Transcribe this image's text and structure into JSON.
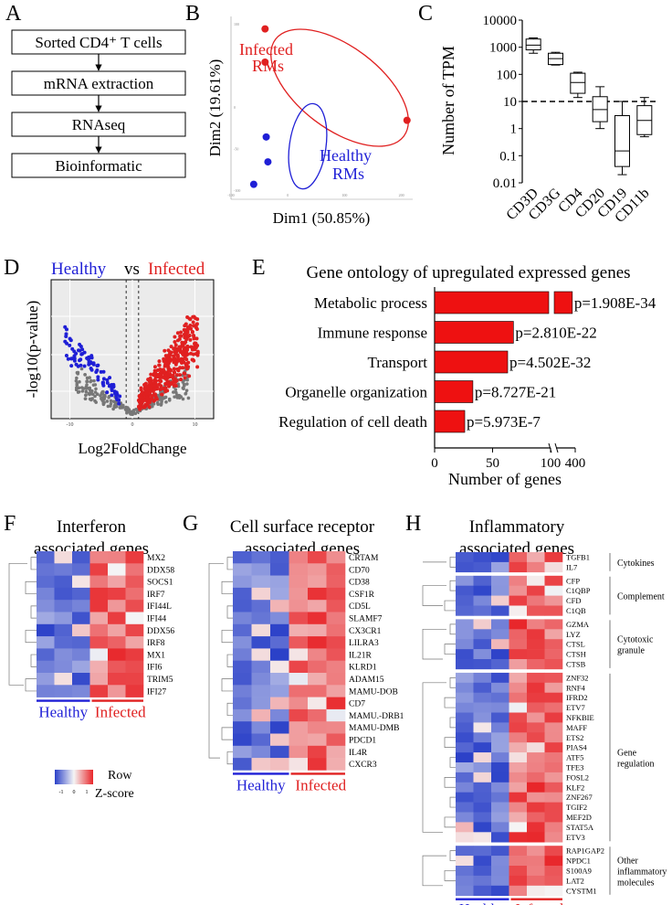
{
  "colors": {
    "healthy": "#1f1fd6",
    "infected": "#e02020",
    "bar": "#ee1111",
    "gray": "#777777",
    "hm_blue": "#2a40c8",
    "hm_red": "#e8262a",
    "hm_white": "#f5f5f5"
  },
  "panelA": {
    "letter": "A",
    "steps": [
      "Sorted CD4⁺ T cells",
      "mRNA extraction",
      "RNAseq",
      "Bioinformatic"
    ]
  },
  "panelB": {
    "letter": "B",
    "chart_data": {
      "type": "scatter",
      "xlabel": "Dim1 (50.85%)",
      "ylabel": "Dim2 (19.61%)",
      "xlim": [
        -100,
        220
      ],
      "ylim": [
        -110,
        110
      ],
      "xticks": [
        "-100",
        "0",
        "100",
        "200"
      ],
      "yticks": [
        "100",
        "0",
        "-50",
        "-100"
      ],
      "series": [
        {
          "name": "Infected RMs",
          "label_lines": [
            "Infected",
            "RMs"
          ],
          "points": [
            [
              -40,
              95
            ],
            [
              -40,
              55
            ],
            [
              210,
              -15
            ]
          ]
        },
        {
          "name": "Healthy RMs",
          "label_lines": [
            "Healthy",
            "RMs"
          ],
          "points": [
            [
              -38,
              -35
            ],
            [
              -35,
              -65
            ],
            [
              -60,
              -92
            ]
          ]
        }
      ]
    }
  },
  "panelC": {
    "letter": "C",
    "chart_data": {
      "type": "box",
      "ylabel": "Number of TPM",
      "yscale": "log",
      "ylim": [
        0.01,
        10000
      ],
      "yticks": [
        "10000",
        "1000",
        "100",
        "10",
        "1",
        "0.1",
        "0.01"
      ],
      "threshold": 10,
      "categories": [
        "CD3D",
        "CD3G",
        "CD4",
        "CD20",
        "CD19",
        "CD11b"
      ],
      "boxes": [
        {
          "min": 600,
          "q1": 800,
          "median": 1200,
          "q3": 2000,
          "max": 2200
        },
        {
          "min": 220,
          "q1": 230,
          "median": 380,
          "q3": 600,
          "max": 650
        },
        {
          "min": 14,
          "q1": 20,
          "median": 50,
          "q3": 110,
          "max": 120
        },
        {
          "min": 1.0,
          "q1": 1.8,
          "median": 5,
          "q3": 15,
          "max": 35
        },
        {
          "min": 0.02,
          "q1": 0.04,
          "median": 0.15,
          "q3": 3,
          "max": 10
        },
        {
          "min": 0.5,
          "q1": 0.6,
          "median": 2,
          "q3": 7,
          "max": 14
        }
      ]
    }
  },
  "panelD": {
    "letter": "D",
    "title_healthy": "Healthy",
    "title_vs": "vs",
    "title_infected": "Infected",
    "chart_data": {
      "type": "scatter",
      "xlabel": "Log2FoldChange",
      "ylabel": "-log10(p-value)",
      "xticks": [
        "-10",
        "0",
        "10"
      ],
      "xlim": [
        -13,
        13
      ],
      "series": [
        "down-regulated (Healthy)",
        "not significant",
        "up-regulated (Infected)"
      ]
    }
  },
  "panelE": {
    "letter": "E",
    "chart_data": {
      "type": "bar",
      "orientation": "horizontal",
      "title": "Gene ontology of upregulated expressed genes",
      "xlabel": "Number of genes",
      "xticks": [
        "0",
        "50",
        "100",
        "400"
      ],
      "categories": [
        "Metabolic process",
        "Immune  response",
        "Transport",
        "Organelle organization",
        "Regulation of cell death"
      ],
      "values": [
        350,
        68,
        63,
        33,
        26
      ],
      "pvalues": [
        "p=1.908E-34",
        "p=2.810E-22",
        "p=4.502E-32",
        "p=8.727E-21",
        "p=5.973E-7"
      ]
    }
  },
  "panelF": {
    "letter": "F",
    "title": [
      "Interferon",
      "associated genes"
    ],
    "genes": [
      "MX2",
      "DDX58",
      "SOCS1",
      "IRF7",
      "IFI44L",
      "IFI44",
      "DDX56",
      "IRF8",
      "MX1",
      "IFI6",
      "TRIM5",
      "IFI27"
    ],
    "healthy_label": "Healthy",
    "infected_label": "Infected"
  },
  "panelG": {
    "letter": "G",
    "title": [
      "Cell surface receptor",
      "associated genes"
    ],
    "genes": [
      "CRTAM",
      "CD70",
      "CD38",
      "CSF1R",
      "CD5L",
      "SLAMF7",
      "CX3CR1",
      "LILRA3",
      "IL21R",
      "KLRD1",
      "ADAM15",
      "MAMU-DOB",
      "CD7",
      "MAMU.-DRB1",
      "MAMU-DMB",
      "PDCD1",
      "IL4R",
      "CXCR3"
    ],
    "healthy_label": "Healthy",
    "infected_label": "Infected"
  },
  "panelH": {
    "letter": "H",
    "title": [
      "Inflammatory",
      "associated genes"
    ],
    "groups": [
      {
        "name": [
          "Cytokines"
        ],
        "genes": [
          "TGFB1",
          "IL7"
        ]
      },
      {
        "name": [
          "Complement"
        ],
        "genes": [
          "CFP",
          "C1QBP",
          "CFD",
          "C1QB"
        ]
      },
      {
        "name": [
          "Cytotoxic",
          "granule"
        ],
        "genes": [
          "GZMA",
          "LYZ",
          "CTSL",
          "CTSH",
          "CTSB"
        ]
      },
      {
        "name": [
          "Gene",
          "regulation"
        ],
        "genes": [
          "ZNF32",
          "RNF4",
          "IFRD2",
          "ETV7",
          "NFKBIE",
          "MAFF",
          "ETS2",
          "PIAS4",
          "ATF5",
          "TFE3",
          "FOSL2",
          "KLF2",
          "ZNF267",
          "TGIF2",
          "MEF2D",
          "STAT5A",
          "ETV3"
        ]
      },
      {
        "name": [
          "Other",
          "inflammatory",
          "molecules"
        ],
        "genes": [
          "RAP1GAP2",
          "NPDC1",
          "S100A9",
          "LAT2",
          "CYSTM1"
        ]
      }
    ],
    "healthy_label": "Healthy",
    "infected_label": "Infected"
  },
  "legend": {
    "label_line1": "Row",
    "label_line2": "Z-score",
    "ticks": [
      "-1",
      "0",
      "1"
    ]
  }
}
